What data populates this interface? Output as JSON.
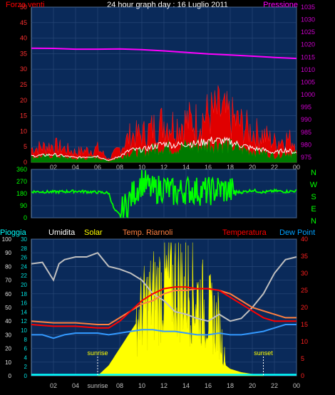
{
  "chart_data": [
    {
      "type": "line",
      "title": "24 hour graph day : 16 Luglio 2011",
      "left_label": "Forza venti",
      "right_label": "Pressione",
      "left_ticks": [
        "0",
        "5",
        "10",
        "15",
        "20",
        "25",
        "30",
        "35",
        "40",
        "45",
        "50"
      ],
      "right_ticks": [
        "975",
        "980",
        "985",
        "990",
        "995",
        "1000",
        "1005",
        "1010",
        "1015",
        "1020",
        "1025",
        "1030",
        "1035"
      ],
      "x_ticks": [
        "02",
        "04",
        "06",
        "08",
        "10",
        "12",
        "14",
        "16",
        "18",
        "20",
        "22",
        "00"
      ],
      "ylim": [
        0,
        50
      ],
      "ylim_right": [
        973,
        1035
      ],
      "series": [
        {
          "name": "Pressione",
          "color": "#ff00ff",
          "axis": "right",
          "x": [
            0,
            2,
            4,
            6,
            8,
            10,
            12,
            14,
            16,
            18,
            20,
            22,
            24
          ],
          "values": [
            1018.6,
            1018.5,
            1018.2,
            1018.2,
            1018.3,
            1018.0,
            1017.5,
            1016.9,
            1016.3,
            1015.9,
            1015.4,
            1014.9,
            1014.5
          ]
        },
        {
          "name": "gust",
          "color": "#ff0000",
          "x": [
            0,
            2,
            4,
            6,
            7,
            8,
            9,
            10,
            11,
            12,
            13,
            14,
            15,
            16,
            17,
            18,
            19,
            20,
            21,
            22,
            23,
            24
          ],
          "values": [
            4,
            5,
            3,
            4,
            1,
            4,
            8,
            8,
            10,
            12,
            11,
            12,
            12,
            14,
            15,
            13,
            11,
            9,
            8,
            6,
            7,
            6
          ]
        },
        {
          "name": "avg",
          "color": "#ffffff",
          "x": [
            0,
            2,
            4,
            6,
            7,
            8,
            9,
            10,
            11,
            12,
            13,
            14,
            15,
            16,
            17,
            18,
            19,
            20,
            21,
            22,
            23,
            24
          ],
          "values": [
            2,
            2.5,
            1.5,
            2,
            0.5,
            2,
            4,
            4,
            5,
            6,
            5.5,
            6,
            6,
            7,
            7,
            6.5,
            5.5,
            4.5,
            4,
            3,
            4,
            3
          ]
        },
        {
          "name": "speed",
          "color": "#008000",
          "x": [
            0,
            2,
            4,
            6,
            7,
            8,
            9,
            10,
            11,
            12,
            13,
            14,
            15,
            16,
            17,
            18,
            19,
            20,
            21,
            22,
            23,
            24
          ],
          "values": [
            1.5,
            2,
            1,
            1.5,
            0.3,
            1.5,
            3,
            3,
            4,
            5,
            4,
            5,
            5,
            5.5,
            6,
            5,
            4,
            3.5,
            3,
            2,
            3,
            2.5
          ]
        }
      ]
    },
    {
      "type": "scatter",
      "left_ticks": [
        "0",
        "90",
        "180",
        "270",
        "360"
      ],
      "right_labels": [
        "N",
        "W",
        "S",
        "E",
        "N"
      ],
      "ylim": [
        0,
        360
      ],
      "series": [
        {
          "name": "direction",
          "color": "#00ff00",
          "x": [
            0,
            2,
            4,
            6,
            7,
            7.5,
            8,
            9,
            10,
            11,
            12,
            13,
            14,
            15,
            16,
            17,
            18,
            19,
            20,
            21,
            22,
            23,
            24
          ],
          "values": [
            195,
            192,
            198,
            190,
            185,
            60,
            20,
            150,
            270,
            200,
            230,
            180,
            210,
            200,
            195,
            215,
            200,
            190,
            205,
            190,
            200,
            195,
            200
          ]
        }
      ]
    },
    {
      "type": "area",
      "legend": [
        "Pioggia",
        "Umidita",
        "Solar",
        "Temp. Riarnoli",
        "Temperatura",
        "Dew Point"
      ],
      "legend_colors": [
        "#00ffff",
        "#ffffff",
        "#ffff00",
        "#ff8040",
        "#ff0000",
        "#00a0ff"
      ],
      "left_outer_ticks": [
        "0",
        "10",
        "20",
        "30",
        "40",
        "50",
        "60",
        "70",
        "80",
        "90",
        "100"
      ],
      "left_inner_ticks": [
        "0",
        "2",
        "4",
        "6",
        "8",
        "10",
        "12",
        "14",
        "16",
        "18",
        "20",
        "22",
        "24",
        "26",
        "28",
        "30"
      ],
      "right_ticks": [
        "0",
        "5",
        "10",
        "15",
        "20",
        "25",
        "30",
        "35",
        "40"
      ],
      "x_ticks": [
        "02",
        "04",
        "sunrise",
        "08",
        "10",
        "12",
        "14",
        "16",
        "18",
        "20",
        "22",
        "00"
      ],
      "annotations": [
        "sunrise",
        "sunset"
      ],
      "ylim_humidity": [
        0,
        100
      ],
      "ylim_temp": [
        0,
        40
      ],
      "series": [
        {
          "name": "Umidita",
          "color": "#c0c0c0",
          "x": [
            0,
            1,
            2,
            2.5,
            3,
            4,
            5,
            6,
            7,
            8,
            9,
            10,
            11,
            12,
            13,
            14,
            15,
            16,
            17,
            18,
            19,
            20,
            21,
            22,
            23,
            24
          ],
          "values": [
            82,
            83,
            70,
            82,
            85,
            87,
            87,
            90,
            80,
            78,
            75,
            70,
            60,
            55,
            47,
            45,
            42,
            40,
            45,
            40,
            42,
            50,
            60,
            75,
            85,
            87
          ]
        },
        {
          "name": "Temp. Riarnoli",
          "color": "#ff8040",
          "x": [
            0,
            2,
            4,
            6,
            7,
            8,
            9,
            10,
            11,
            12,
            13,
            14,
            15,
            16,
            17,
            18,
            19,
            20,
            21,
            22,
            23,
            24
          ],
          "values": [
            16,
            15.5,
            15.5,
            15,
            15,
            17,
            19,
            21,
            22,
            24,
            25,
            25,
            25.5,
            25.5,
            25,
            24,
            22,
            20,
            19,
            18,
            17,
            17
          ]
        },
        {
          "name": "Temperatura",
          "color": "#ff0000",
          "x": [
            0,
            2,
            4,
            6,
            7,
            8,
            9,
            10,
            11,
            12,
            13,
            14,
            15,
            16,
            17,
            18,
            19,
            20,
            21,
            22,
            23,
            24
          ],
          "values": [
            15,
            14.5,
            14.5,
            14,
            14,
            16,
            19,
            22,
            24,
            25.5,
            26,
            26,
            25.5,
            25.5,
            25,
            23,
            21,
            19,
            17,
            16,
            16,
            16
          ]
        },
        {
          "name": "Dew Point",
          "color": "#3399ff",
          "x": [
            0,
            1,
            2,
            3,
            4,
            5,
            6,
            7,
            8,
            9,
            10,
            11,
            12,
            13,
            14,
            15,
            16,
            17,
            18,
            19,
            20,
            21,
            22,
            23,
            24
          ],
          "values": [
            12,
            12,
            11,
            12,
            12.5,
            12.5,
            12.5,
            12,
            12.5,
            13,
            13.5,
            13.5,
            13,
            13,
            12.5,
            12,
            12,
            12.5,
            12,
            12,
            12.5,
            13,
            14,
            15,
            15
          ]
        },
        {
          "name": "Solar",
          "color": "#ffff00",
          "x": [
            6,
            7,
            8,
            9,
            10,
            11,
            12,
            13,
            14,
            15,
            16,
            17,
            17.6,
            18,
            19,
            20,
            21
          ],
          "values": [
            0,
            3,
            8,
            13,
            18,
            22,
            25,
            26,
            25,
            22,
            18,
            14,
            3,
            2,
            1,
            0.5,
            0
          ]
        },
        {
          "name": "Pioggia",
          "color": "#00ffff",
          "x": [
            0,
            24
          ],
          "values": [
            0.5,
            0.5
          ]
        }
      ],
      "sun_x": [
        6,
        21
      ]
    }
  ]
}
